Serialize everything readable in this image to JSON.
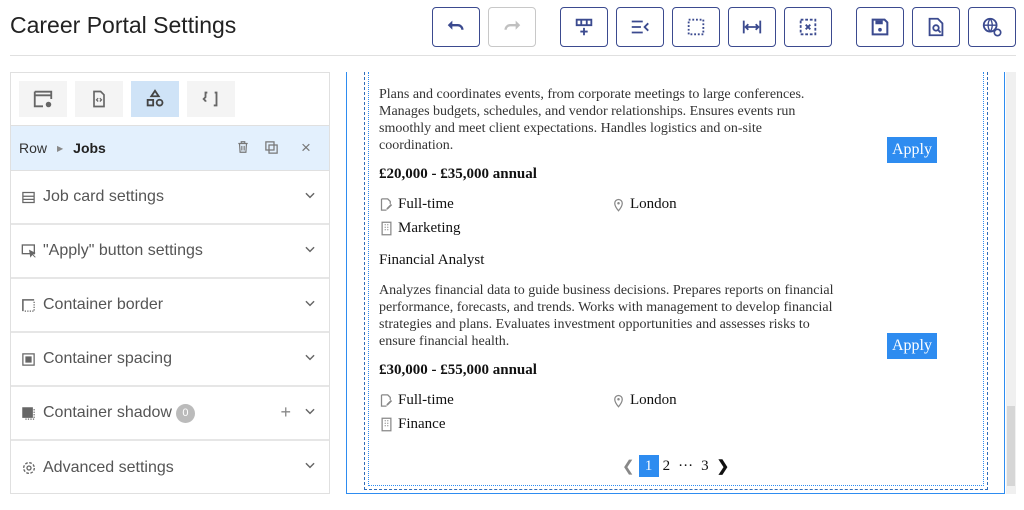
{
  "header": {
    "title": "Career Portal Settings"
  },
  "toolbar": [
    {
      "icon": "undo-icon",
      "enabled": true
    },
    {
      "icon": "redo-icon",
      "enabled": false
    },
    {
      "icon": "add-row-icon"
    },
    {
      "icon": "collapse-icon"
    },
    {
      "icon": "dotted-border-icon"
    },
    {
      "icon": "fit-width-icon"
    },
    {
      "icon": "remove-selection-icon"
    },
    {
      "icon": "save-icon"
    },
    {
      "icon": "preview-document-icon"
    },
    {
      "icon": "globe-sync-icon"
    }
  ],
  "panel": {
    "tabs": [
      {
        "icon": "window-settings-icon"
      },
      {
        "icon": "code-file-icon"
      },
      {
        "icon": "shapes-icon",
        "active": true
      },
      {
        "icon": "braces-icon"
      }
    ],
    "breadcrumb": {
      "parent": "Row",
      "current": "Jobs"
    },
    "sections": [
      {
        "label": "Job card settings",
        "icon": "list-icon"
      },
      {
        "label": "\"Apply\" button settings",
        "icon": "click-icon"
      },
      {
        "label": "Container border",
        "icon": "border-icon"
      },
      {
        "label": "Container spacing",
        "icon": "spacing-icon"
      },
      {
        "label": "Container shadow",
        "icon": "shadow-icon",
        "badge": "0"
      },
      {
        "label": "Advanced settings",
        "icon": "gear-icon"
      }
    ]
  },
  "preview": {
    "jobs": [
      {
        "title": "",
        "description": "Plans and coordinates events, from corporate meetings to large conferences. Manages budgets, schedules, and vendor relationships. Ensures events run smoothly and meet client expectations. Handles logistics and on-site coordination.",
        "salary": "£20,000 - £35,000 annual",
        "type": "Full-time",
        "location": "London",
        "department": "Marketing",
        "apply": "Apply"
      },
      {
        "title": "Financial Analyst",
        "description": "Analyzes financial data to guide business decisions. Prepares reports on financial performance, forecasts, and trends. Works with management to develop financial strategies and plans. Evaluates investment opportunities and assesses risks to ensure financial health.",
        "salary": "£30,000 - £55,000 annual",
        "type": "Full-time",
        "location": "London",
        "department": "Finance",
        "apply": "Apply"
      }
    ],
    "pagination": {
      "pages": [
        "1",
        "2",
        "3"
      ],
      "ellipsis": "···",
      "current": "1"
    }
  },
  "colors": {
    "accent": "#2e8cf0",
    "toolbar": "#3b4a8f",
    "breadcrumb_bg": "#e3f0fd"
  }
}
